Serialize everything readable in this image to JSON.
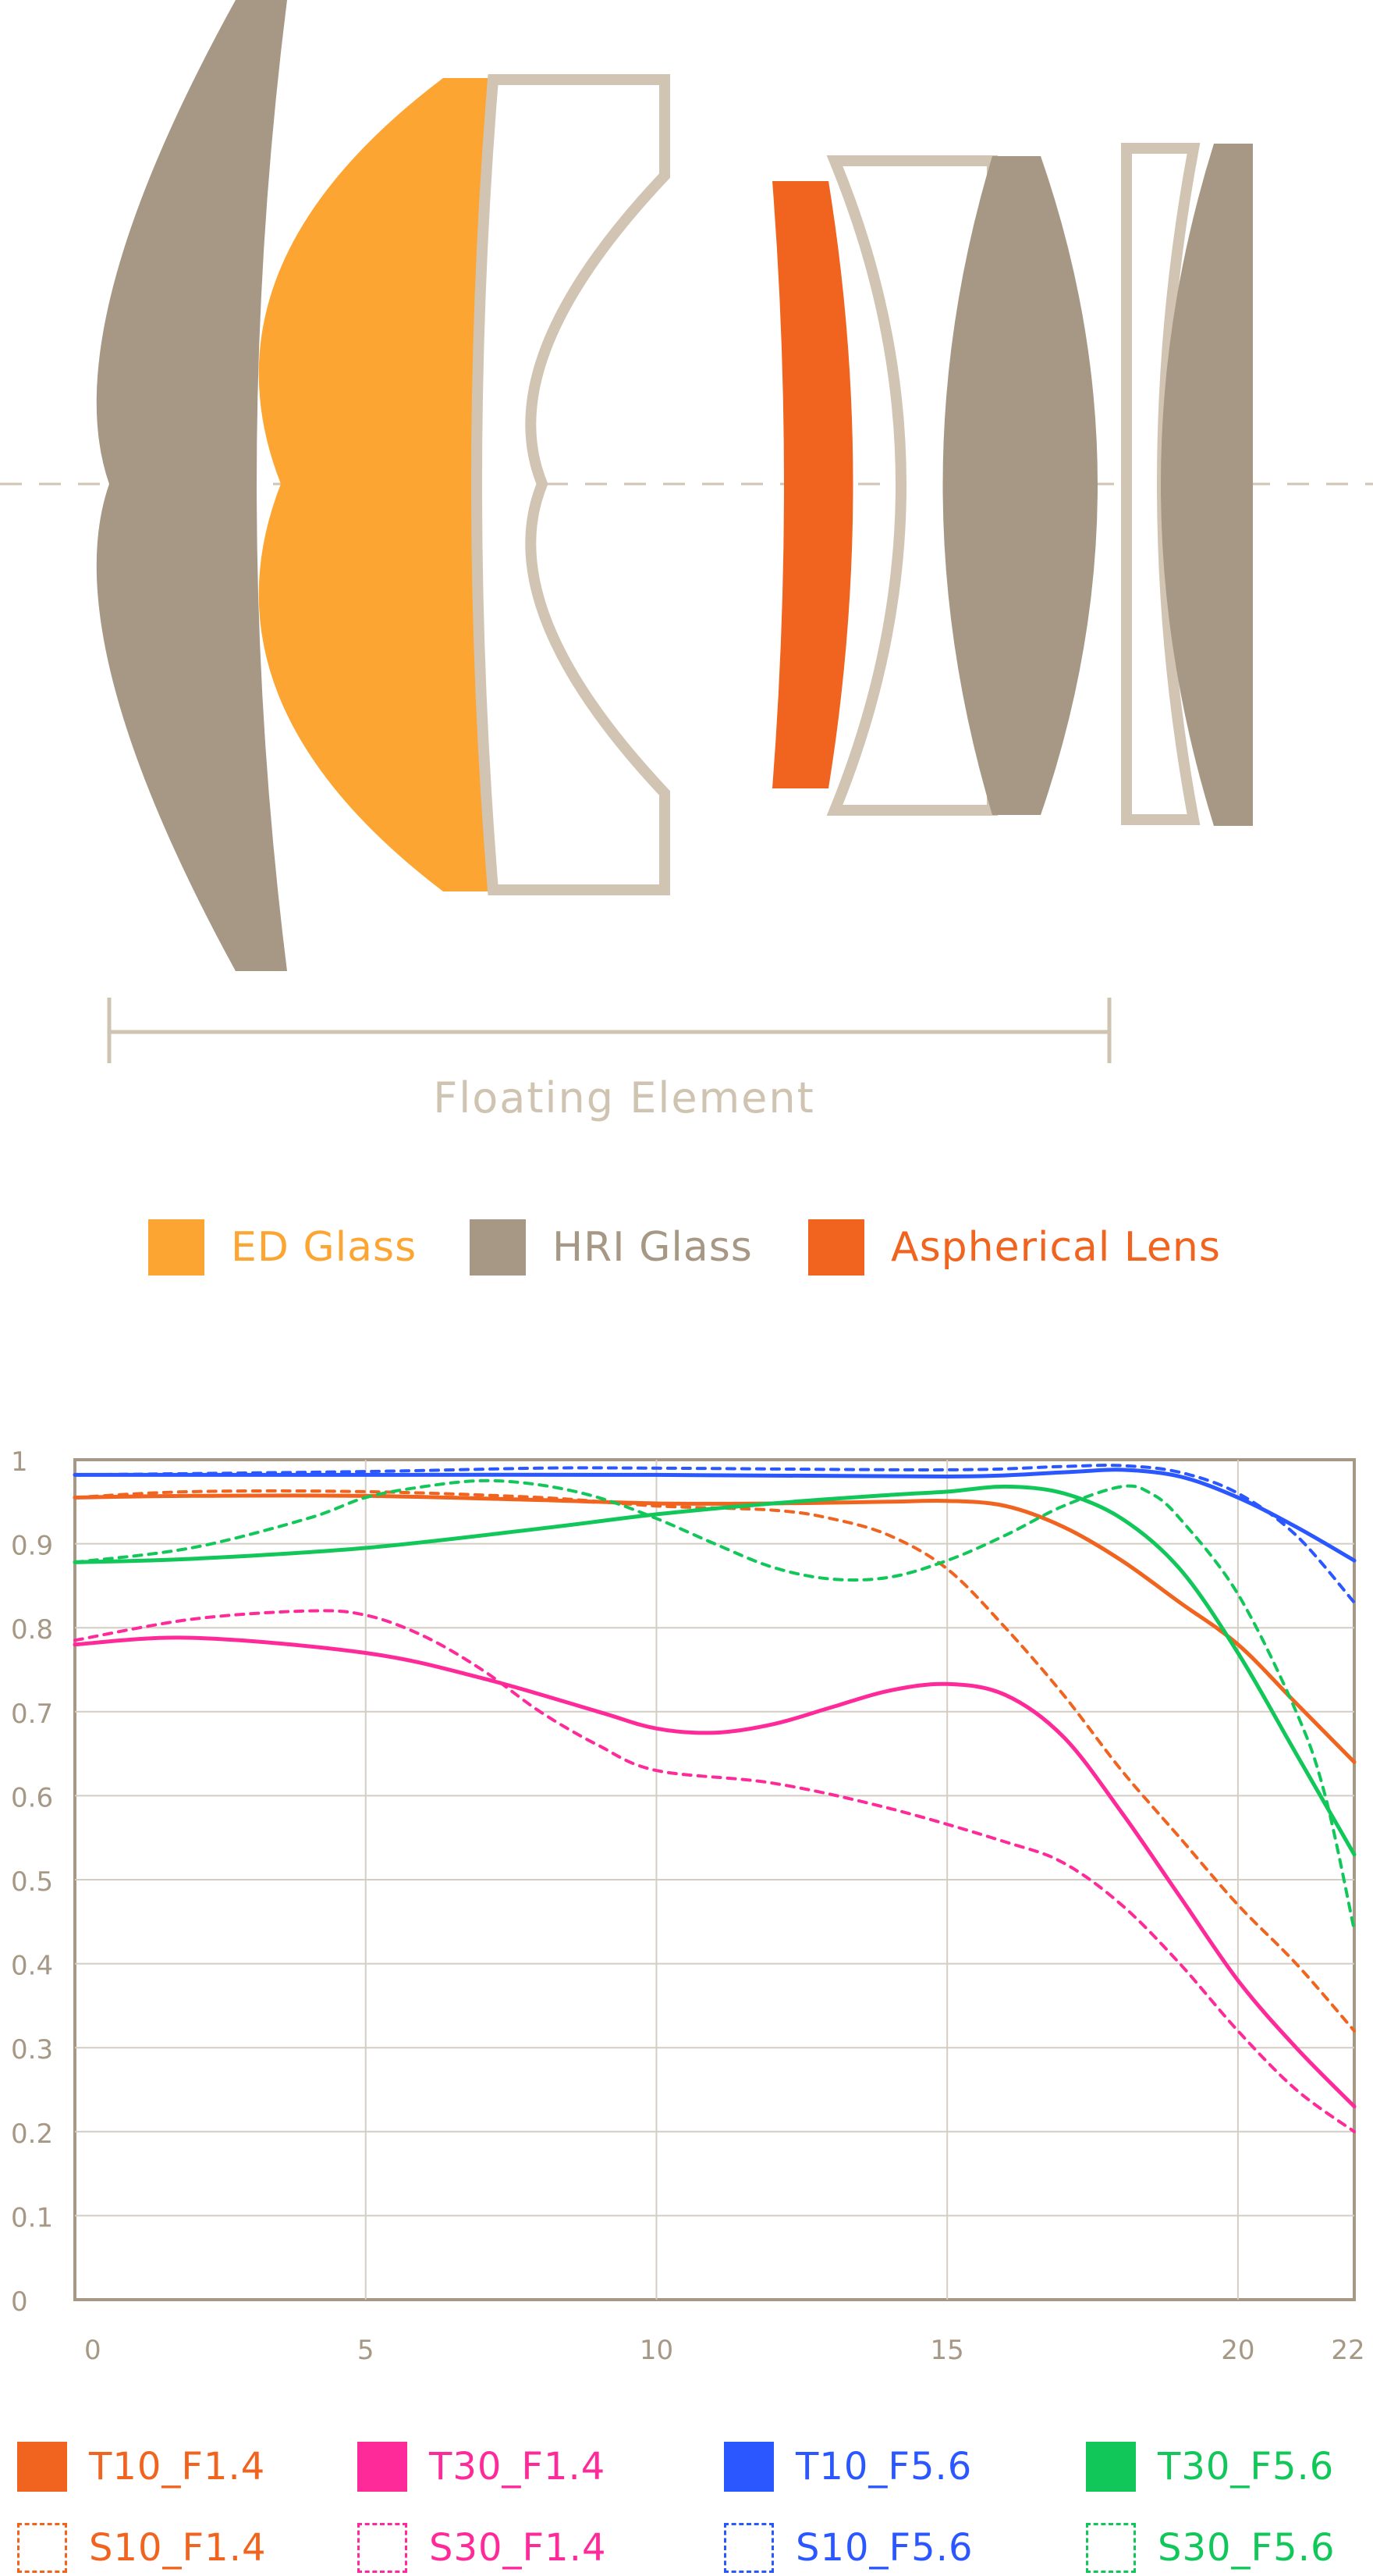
{
  "colors": {
    "ed_glass": "#fca533",
    "hri_glass": "#a69885",
    "aspherical": "#f0641f",
    "outline": "#d2c4b2",
    "grid": "#d4cdc3",
    "axis": "#a69885"
  },
  "diagram": {
    "floating_label": "Floating Element"
  },
  "lens_legend": [
    {
      "name": "ED Glass",
      "color": "#fca533"
    },
    {
      "name": "HRI Glass",
      "color": "#a69885"
    },
    {
      "name": "Aspherical Lens",
      "color": "#f0641f"
    }
  ],
  "chart_data": {
    "type": "line",
    "title": "",
    "xlabel": "",
    "ylabel": "",
    "xlim": [
      0,
      22
    ],
    "ylim": [
      0,
      1
    ],
    "x_ticks": [
      "0",
      "5",
      "10",
      "15",
      "20",
      "22"
    ],
    "x_tick_values": [
      0,
      5,
      10,
      15,
      20,
      22
    ],
    "y_ticks": [
      "0",
      "0.1",
      "0.2",
      "0.3",
      "0.4",
      "0.5",
      "0.6",
      "0.7",
      "0.8",
      "0.9",
      "1"
    ],
    "y_tick_values": [
      0,
      0.1,
      0.2,
      0.3,
      0.4,
      0.5,
      0.6,
      0.7,
      0.8,
      0.9,
      1
    ],
    "series": [
      {
        "name": "T10_F1.4",
        "color": "#f0641f",
        "dash": false,
        "x": [
          0,
          2,
          5,
          8,
          10,
          12,
          14,
          15,
          16,
          17,
          18,
          19,
          20,
          21,
          22
        ],
        "y": [
          0.955,
          0.957,
          0.957,
          0.952,
          0.948,
          0.948,
          0.95,
          0.951,
          0.945,
          0.92,
          0.88,
          0.83,
          0.78,
          0.71,
          0.64
        ]
      },
      {
        "name": "S10_F1.4",
        "color": "#f0641f",
        "dash": true,
        "x": [
          0,
          2,
          5,
          8,
          10,
          12,
          13,
          14,
          15,
          16,
          17,
          18,
          19,
          20,
          21,
          22
        ],
        "y": [
          0.955,
          0.962,
          0.962,
          0.955,
          0.945,
          0.94,
          0.93,
          0.91,
          0.87,
          0.8,
          0.72,
          0.63,
          0.55,
          0.47,
          0.4,
          0.32
        ]
      },
      {
        "name": "T30_F1.4",
        "color": "#ff2a9a",
        "dash": false,
        "x": [
          0,
          2,
          5,
          7,
          9,
          10,
          11,
          12,
          13,
          14,
          15,
          16,
          17,
          18,
          19,
          20,
          21,
          22
        ],
        "y": [
          0.78,
          0.788,
          0.77,
          0.74,
          0.7,
          0.68,
          0.675,
          0.685,
          0.705,
          0.725,
          0.733,
          0.72,
          0.67,
          0.58,
          0.48,
          0.38,
          0.3,
          0.23
        ]
      },
      {
        "name": "S30_F1.4",
        "color": "#ff2a9a",
        "dash": true,
        "x": [
          0,
          2,
          4,
          5,
          6,
          7,
          8,
          9,
          10,
          12,
          14,
          16,
          17,
          18,
          19,
          20,
          21,
          22
        ],
        "y": [
          0.785,
          0.81,
          0.82,
          0.815,
          0.79,
          0.75,
          0.7,
          0.66,
          0.63,
          0.615,
          0.585,
          0.545,
          0.52,
          0.47,
          0.4,
          0.32,
          0.25,
          0.2
        ]
      },
      {
        "name": "T10_F5.6",
        "color": "#2a57ff",
        "dash": false,
        "x": [
          0,
          5,
          10,
          15,
          17,
          18,
          19,
          20,
          21,
          22
        ],
        "y": [
          0.982,
          0.982,
          0.982,
          0.98,
          0.985,
          0.988,
          0.98,
          0.955,
          0.92,
          0.88
        ]
      },
      {
        "name": "S10_F5.6",
        "color": "#2a57ff",
        "dash": true,
        "x": [
          0,
          5,
          8,
          10,
          15,
          17,
          18,
          19,
          20,
          21,
          22
        ],
        "y": [
          0.982,
          0.986,
          0.99,
          0.99,
          0.988,
          0.992,
          0.993,
          0.985,
          0.96,
          0.91,
          0.83
        ]
      },
      {
        "name": "T30_F5.6",
        "color": "#12c75a",
        "dash": false,
        "x": [
          0,
          2,
          5,
          8,
          10,
          12,
          14,
          15,
          16,
          17,
          18,
          19,
          20,
          21,
          22
        ],
        "y": [
          0.878,
          0.882,
          0.895,
          0.918,
          0.935,
          0.948,
          0.958,
          0.962,
          0.968,
          0.96,
          0.93,
          0.87,
          0.77,
          0.65,
          0.53
        ]
      },
      {
        "name": "S30_F5.6",
        "color": "#12c75a",
        "dash": true,
        "x": [
          0,
          2,
          4,
          5,
          6,
          7,
          8,
          9,
          10,
          11,
          12,
          13,
          14,
          15,
          16,
          17,
          18,
          18.5,
          19,
          20,
          21,
          21.5,
          22
        ],
        "y": [
          0.878,
          0.895,
          0.93,
          0.955,
          0.968,
          0.975,
          0.97,
          0.955,
          0.93,
          0.9,
          0.872,
          0.858,
          0.86,
          0.88,
          0.91,
          0.945,
          0.968,
          0.96,
          0.93,
          0.84,
          0.7,
          0.6,
          0.44
        ]
      }
    ]
  }
}
